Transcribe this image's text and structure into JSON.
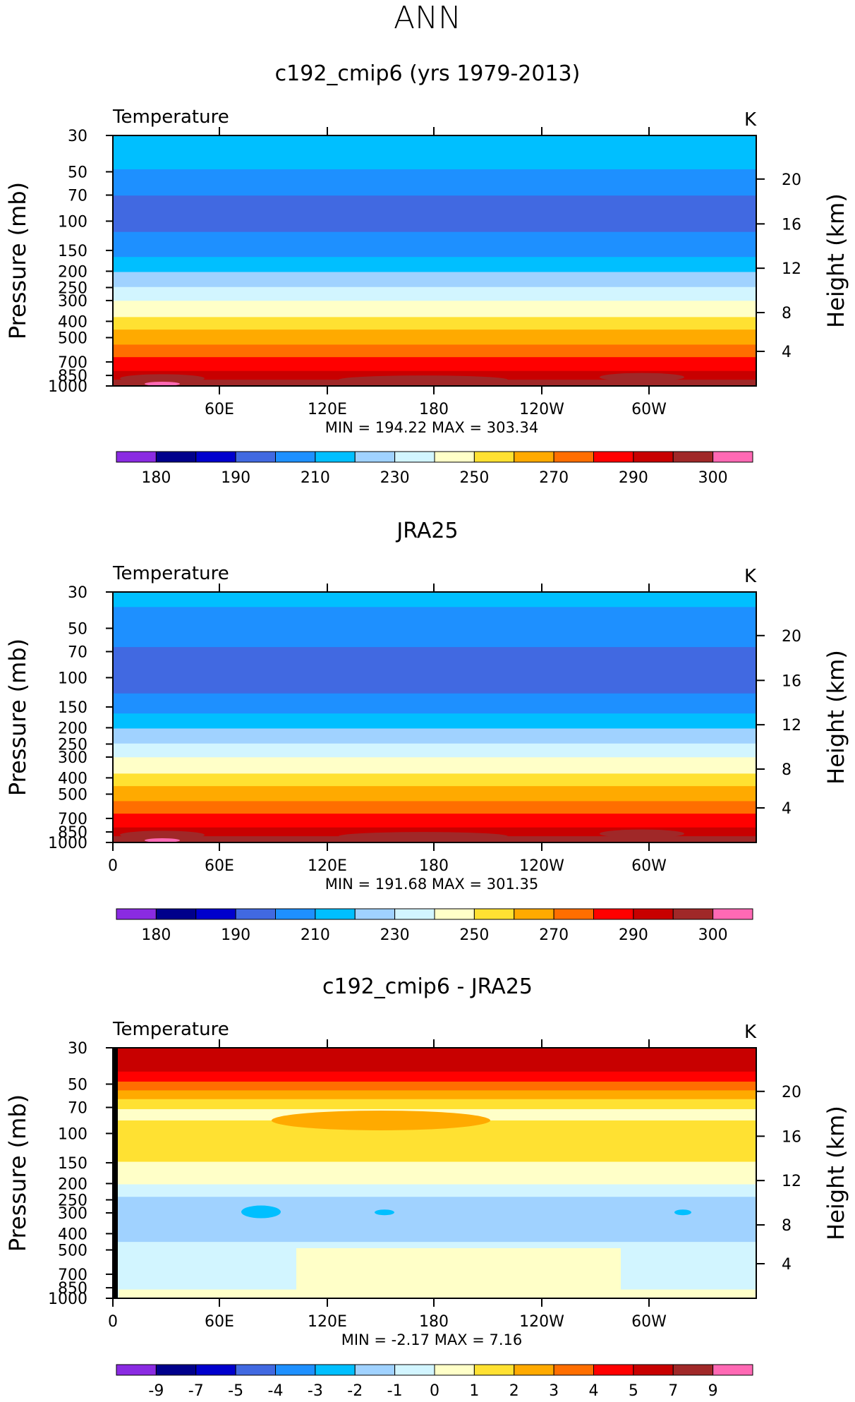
{
  "suptitle": "ANN",
  "chart_data": [
    {
      "type": "heatmap",
      "title": "c192_cmip6 (yrs 1979-2013)",
      "left_label": "Temperature",
      "units": "K",
      "ylabel": "Pressure (mb)",
      "ylabel_right": "Height (km)",
      "pressure_ticks": [
        "30",
        "50",
        "70",
        "100",
        "150",
        "200",
        "250",
        "300",
        "400",
        "500",
        "700",
        "850",
        "1000"
      ],
      "height_ticks": [
        "20",
        "16",
        "12",
        "8",
        "4"
      ],
      "x_ticks": [
        "60E",
        "120E",
        "180",
        "120W",
        "60W"
      ],
      "minmax": "MIN =  194.22   MAX =  303.34",
      "colorbar_labels": [
        "180",
        "190",
        "210",
        "230",
        "250",
        "270",
        "290",
        "300"
      ],
      "colors": [
        "#8a2be2",
        "#00008b",
        "#0000cd",
        "#4169e1",
        "#1e90ff",
        "#00bfff",
        "#a0d2ff",
        "#d2f5ff",
        "#ffffc8",
        "#ffe132",
        "#ffaa00",
        "#ff6e00",
        "#ff0000",
        "#c80000",
        "#a02828",
        "#ff69b4"
      ]
    },
    {
      "type": "heatmap",
      "title": "JRA25",
      "left_label": "Temperature",
      "units": "K",
      "ylabel": "Pressure (mb)",
      "ylabel_right": "Height (km)",
      "pressure_ticks": [
        "30",
        "50",
        "70",
        "100",
        "150",
        "200",
        "250",
        "300",
        "400",
        "500",
        "700",
        "850",
        "1000"
      ],
      "height_ticks": [
        "20",
        "16",
        "12",
        "8",
        "4"
      ],
      "x_ticks": [
        "0",
        "60E",
        "120E",
        "180",
        "120W",
        "60W"
      ],
      "minmax": "MIN =  191.68   MAX =  301.35",
      "colorbar_labels": [
        "180",
        "190",
        "210",
        "230",
        "250",
        "270",
        "290",
        "300"
      ],
      "colors": [
        "#8a2be2",
        "#00008b",
        "#0000cd",
        "#4169e1",
        "#1e90ff",
        "#00bfff",
        "#a0d2ff",
        "#d2f5ff",
        "#ffffc8",
        "#ffe132",
        "#ffaa00",
        "#ff6e00",
        "#ff0000",
        "#c80000",
        "#a02828",
        "#ff69b4"
      ]
    },
    {
      "type": "heatmap",
      "title": "c192_cmip6 - JRA25",
      "left_label": "Temperature",
      "units": "K",
      "ylabel": "Pressure (mb)",
      "ylabel_right": "Height (km)",
      "pressure_ticks": [
        "30",
        "50",
        "70",
        "100",
        "150",
        "200",
        "250",
        "300",
        "400",
        "500",
        "700",
        "850",
        "1000"
      ],
      "height_ticks": [
        "20",
        "16",
        "12",
        "8",
        "4"
      ],
      "x_ticks": [
        "0",
        "60E",
        "120E",
        "180",
        "120W",
        "60W"
      ],
      "minmax": "MIN =    -2.17   MAX =     7.16",
      "colorbar_labels": [
        "-9",
        "-7",
        "-5",
        "-4",
        "-3",
        "-2",
        "-1",
        "0",
        "1",
        "2",
        "3",
        "4",
        "5",
        "7",
        "9"
      ],
      "colors": [
        "#8a2be2",
        "#00008b",
        "#0000cd",
        "#4169e1",
        "#1e90ff",
        "#00bfff",
        "#a0d2ff",
        "#d2f5ff",
        "#ffffc8",
        "#ffe132",
        "#ffaa00",
        "#ff6e00",
        "#ff0000",
        "#c80000",
        "#a02828",
        "#ff69b4"
      ]
    }
  ]
}
